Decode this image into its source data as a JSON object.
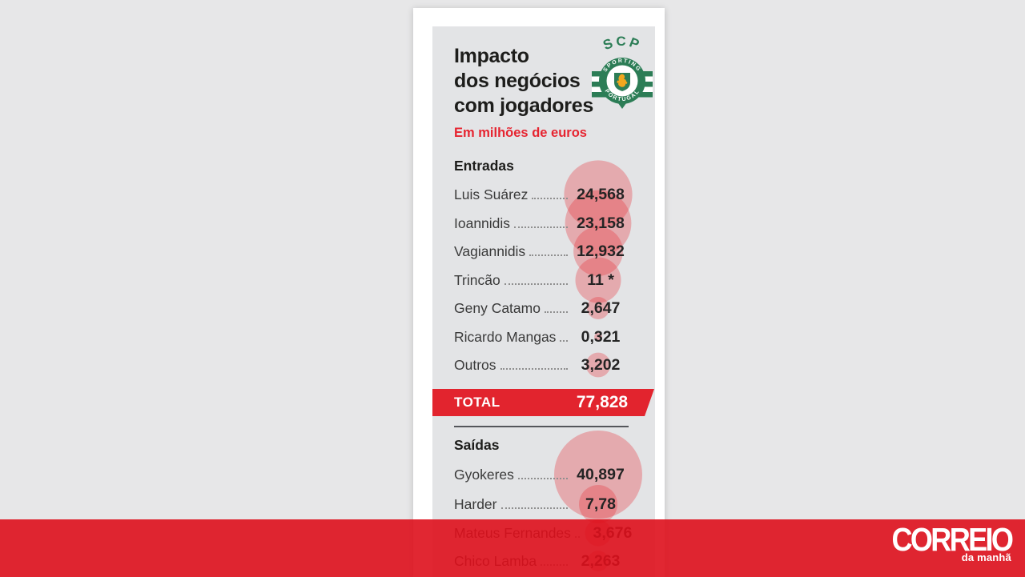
{
  "colors": {
    "page_background": "#e7e7e8",
    "panel_background": "#e3e4e6",
    "accent_red": "#e2242e",
    "bubble_red": "#e7343e",
    "crest_green": "#2c7d56",
    "crest_gold": "#f2a71f"
  },
  "infographic": {
    "title_lines": [
      "Impacto",
      "dos negócios",
      "com jogadores"
    ],
    "subtitle": "Em milhões de euros",
    "logo": {
      "monogram": "SCP",
      "ring_top": "SPORTING",
      "ring_bottom": "PORTUGAL"
    }
  },
  "footer": {
    "brand": "CORREIO",
    "brand_sub": "da manhã"
  },
  "chart_data": {
    "type": "table",
    "encoding": "proportional-bubbles",
    "title": "Impacto dos negócios com jogadores",
    "subtitle": "Em milhões de euros",
    "unit": "milhões de euros",
    "bubble_color": "#e7343e",
    "bubble_opacity": 0.33,
    "sections": [
      {
        "name": "Entradas",
        "rows": [
          {
            "label": "Luis Suárez",
            "display": "24,568",
            "value": 24.568
          },
          {
            "label": "Ioannidis",
            "display": "23,158",
            "value": 23.158
          },
          {
            "label": "Vagiannidis",
            "display": "12,932",
            "value": 12.932
          },
          {
            "label": "Trincão",
            "display": "11 *",
            "value": 11
          },
          {
            "label": "Geny Catamo",
            "display": "2,647",
            "value": 2.647
          },
          {
            "label": "Ricardo Mangas",
            "display": "0,321",
            "value": 0.321
          },
          {
            "label": "Outros",
            "display": "3,202",
            "value": 3.202
          }
        ]
      },
      {
        "name": "Saídas",
        "rows": [
          {
            "label": "Gyokeres",
            "display": "40,897",
            "value": 40.897
          },
          {
            "label": "Harder",
            "display": "7,78",
            "value": 7.78
          },
          {
            "label": "Mateus Fernandes",
            "display": "3,676",
            "value": 3.676
          },
          {
            "label": "Chico Lamba",
            "display": "2,263",
            "value": 2.263
          }
        ]
      }
    ],
    "total": {
      "label": "TOTAL",
      "display": "77,828",
      "value": 77.828
    }
  }
}
